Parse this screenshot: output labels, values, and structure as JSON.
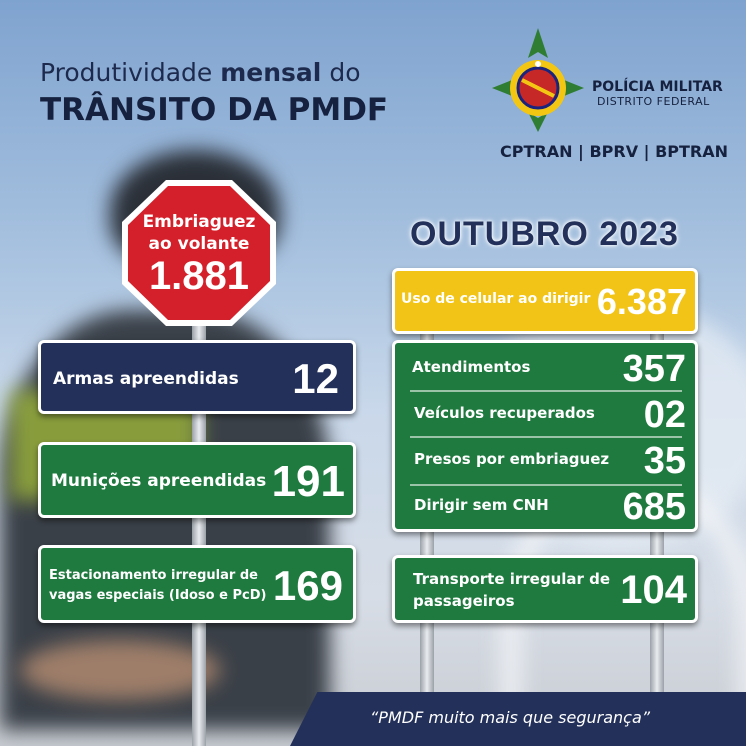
{
  "header": {
    "title_line1_a": "Produtividade ",
    "title_line1_b": "mensal",
    "title_line1_c": " do",
    "title_line2": "TRÂNSITO DA PMDF",
    "org_name": "POLÍCIA MILITAR",
    "org_sub": "DISTRITO FEDERAL",
    "units": "CPTRAN | BPRV | BPTRAN"
  },
  "period": "OUTUBRO 2023",
  "stop_sign": {
    "label_line1": "Embriaguez",
    "label_line2": "ao volante",
    "value": "1.881"
  },
  "left_signs": [
    {
      "label": "Armas apreendidas",
      "value": "12"
    },
    {
      "label": "Munições apreendidas",
      "value": "191"
    },
    {
      "label_line1": "Estacionamento irregular de",
      "label_line2": "vagas especiais (Idoso e PcD)",
      "value": "169"
    }
  ],
  "yellow_sign": {
    "label": "Uso de celular ao dirigir",
    "value": "6.387"
  },
  "right_board": [
    {
      "label": "Atendimentos",
      "value": "357"
    },
    {
      "label": "Veículos recuperados",
      "value": "02"
    },
    {
      "label": "Presos por embriaguez",
      "value": "35"
    },
    {
      "label": "Dirigir sem CNH",
      "value": "685"
    }
  ],
  "transport_sign": {
    "label_line1": "Transporte irregular de",
    "label_line2": "passageiros",
    "value": "104"
  },
  "footer": {
    "slogan": "“PMDF muito mais que segurança”"
  },
  "colors": {
    "navy": "#23305a",
    "green": "#1f7a3f",
    "yellow": "#f1c417",
    "stop_red": "#d4202a"
  },
  "icons": {
    "emblem": "pmdf-emblem-icon"
  }
}
